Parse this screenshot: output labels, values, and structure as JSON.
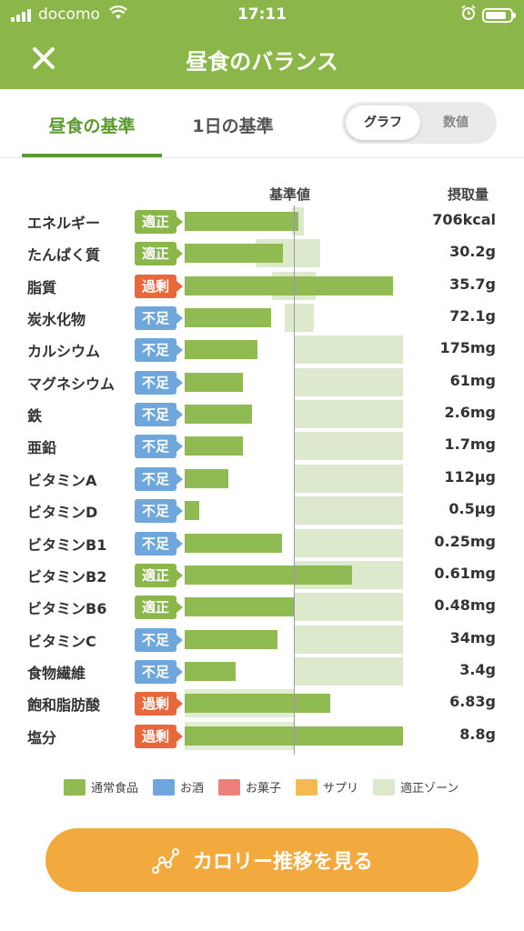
{
  "status_bar": {
    "carrier": "docomo",
    "time": "17:11"
  },
  "header": {
    "title": "昼食のバランス",
    "close_icon": "close-icon"
  },
  "tabs": {
    "active": "昼食の基準",
    "other": "1日の基準"
  },
  "view_toggle": {
    "graph": "グラフ",
    "numeric": "数値",
    "selected": "グラフ"
  },
  "column_headers": {
    "reference": "基準値",
    "intake": "摂取量"
  },
  "colors": {
    "primary": "#8bb74a",
    "bar_normal_food": "#8fbb52",
    "proper_zone": "#dde9cd",
    "status_ok": "#8bb74a",
    "status_low": "#6fa6dc",
    "status_excess": "#e8683c",
    "cta": "#f2aa3e"
  },
  "chart_data": {
    "type": "bar",
    "orientation": "horizontal",
    "reference_line": 1.0,
    "value_unit": "fraction of reference value",
    "rows": [
      {
        "name": "エネルギー",
        "status": "適正",
        "status_key": "ok",
        "fill": 1.04,
        "zone": [
          0.98,
          1.09
        ],
        "value": "706kcal"
      },
      {
        "name": "たんぱく質",
        "status": "適正",
        "status_key": "ok",
        "fill": 0.9,
        "zone": [
          0.65,
          1.24
        ],
        "value": "30.2g"
      },
      {
        "name": "脂質",
        "status": "過剰",
        "status_key": "excess",
        "fill": 1.91,
        "zone": [
          0.8,
          1.2
        ],
        "value": "35.7g"
      },
      {
        "name": "炭水化物",
        "status": "不足",
        "status_key": "low",
        "fill": 0.79,
        "zone": [
          0.92,
          1.18
        ],
        "value": "72.1g"
      },
      {
        "name": "カルシウム",
        "status": "不足",
        "status_key": "low",
        "fill": 0.67,
        "zone": [
          1.0,
          2.0
        ],
        "value": "175mg"
      },
      {
        "name": "マグネシウム",
        "status": "不足",
        "status_key": "low",
        "fill": 0.53,
        "zone": [
          1.0,
          2.0
        ],
        "value": "61mg"
      },
      {
        "name": "鉄",
        "status": "不足",
        "status_key": "low",
        "fill": 0.62,
        "zone": [
          1.0,
          2.0
        ],
        "value": "2.6mg"
      },
      {
        "name": "亜鉛",
        "status": "不足",
        "status_key": "low",
        "fill": 0.53,
        "zone": [
          1.0,
          2.0
        ],
        "value": "1.7mg"
      },
      {
        "name": "ビタミンA",
        "status": "不足",
        "status_key": "low",
        "fill": 0.4,
        "zone": [
          1.0,
          2.0
        ],
        "value": "112μg"
      },
      {
        "name": "ビタミンD",
        "status": "不足",
        "status_key": "low",
        "fill": 0.13,
        "zone": [
          1.0,
          2.0
        ],
        "value": "0.5μg"
      },
      {
        "name": "ビタミンB1",
        "status": "不足",
        "status_key": "low",
        "fill": 0.89,
        "zone": [
          1.0,
          2.0
        ],
        "value": "0.25mg"
      },
      {
        "name": "ビタミンB2",
        "status": "適正",
        "status_key": "ok",
        "fill": 1.53,
        "zone": [
          1.0,
          2.0
        ],
        "value": "0.61mg"
      },
      {
        "name": "ビタミンB6",
        "status": "適正",
        "status_key": "ok",
        "fill": 1.0,
        "zone": [
          1.0,
          2.0
        ],
        "value": "0.48mg"
      },
      {
        "name": "ビタミンC",
        "status": "不足",
        "status_key": "low",
        "fill": 0.85,
        "zone": [
          1.0,
          2.0
        ],
        "value": "34mg"
      },
      {
        "name": "食物繊維",
        "status": "不足",
        "status_key": "low",
        "fill": 0.47,
        "zone": [
          1.0,
          2.0
        ],
        "value": "3.4g"
      },
      {
        "name": "飽和脂肪酸",
        "status": "過剰",
        "status_key": "excess",
        "fill": 1.33,
        "zone": [
          0.0,
          1.0
        ],
        "value": "6.83g"
      },
      {
        "name": "塩分",
        "status": "過剰",
        "status_key": "excess",
        "fill": 2.0,
        "zone": [
          0.0,
          1.0
        ],
        "value": "8.8g"
      }
    ]
  },
  "legend": [
    {
      "label": "通常食品",
      "color": "#8fbb52"
    },
    {
      "label": "お酒",
      "color": "#6fa6dc"
    },
    {
      "label": "お菓子",
      "color": "#ee807c"
    },
    {
      "label": "サプリ",
      "color": "#f4b951"
    },
    {
      "label": "適正ゾーン",
      "color": "#dde9cd"
    }
  ],
  "cta": {
    "label": "カロリー推移を見る",
    "icon": "trend-graph-icon"
  }
}
